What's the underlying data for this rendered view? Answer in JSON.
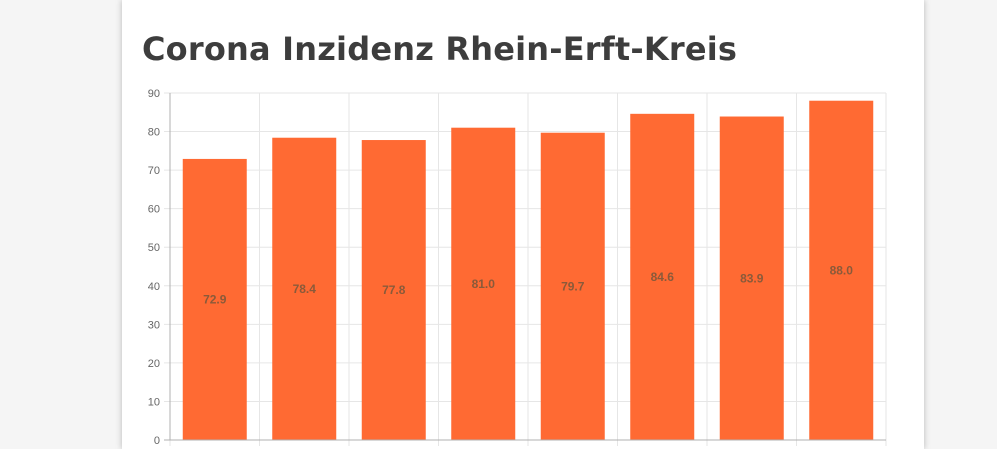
{
  "page": {
    "title": "Corona Inzidenz Rhein-Erft-Kreis"
  },
  "colors": {
    "bar": "#ff6a33",
    "grid": "#e6e6e6",
    "axis": "#b0b0b0",
    "label": "#8a5a3a"
  },
  "chart_data": {
    "type": "bar",
    "title": "Corona Inzidenz Rhein-Erft-Kreis",
    "categories": [
      "",
      "",
      "",
      "",
      "",
      "",
      "",
      ""
    ],
    "values": [
      72.9,
      78.4,
      77.8,
      81.0,
      79.7,
      84.6,
      83.9,
      88.0
    ],
    "data_labels": [
      "72.9",
      "78.4",
      "77.8",
      "81.0",
      "79.7",
      "84.6",
      "83.9",
      "88.0"
    ],
    "ylim": [
      0,
      90
    ],
    "yticks": [
      0,
      10,
      20,
      30,
      40,
      50,
      60,
      70,
      80,
      90
    ],
    "ytick_labels": [
      "0",
      "10",
      "20",
      "30",
      "40",
      "50",
      "60",
      "70",
      "80",
      "90"
    ],
    "grid": true,
    "legend": "none"
  }
}
